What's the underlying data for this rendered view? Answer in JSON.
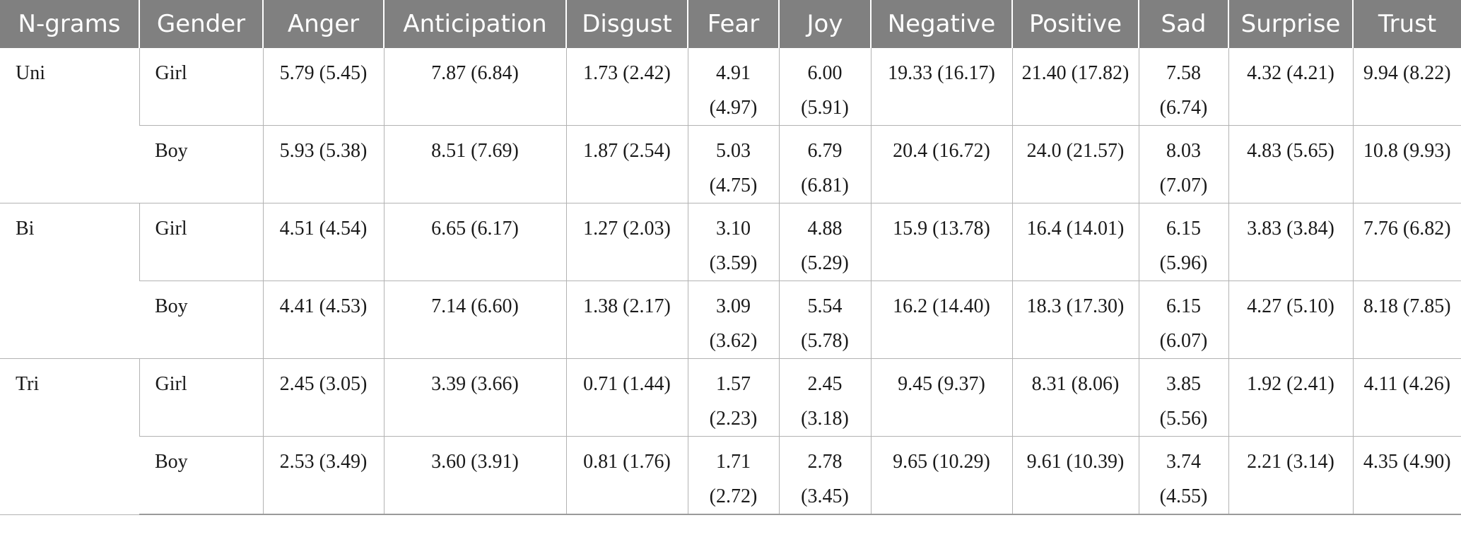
{
  "table": {
    "headers": [
      "N-grams",
      "Gender",
      "Anger",
      "Anticipation",
      "Disgust",
      "Fear",
      "Joy",
      "Negative",
      "Positive",
      "Sad",
      "Surprise",
      "Trust"
    ],
    "groups": [
      {
        "ngram": "Uni",
        "rows": [
          {
            "gender": "Girl",
            "values": [
              "5.79 (5.45)",
              "7.87 (6.84)",
              "1.73 (2.42)",
              "4.91 (4.97)",
              "6.00 (5.91)",
              "19.33 (16.17)",
              "21.40 (17.82)",
              "7.58 (6.74)",
              "4.32 (4.21)",
              "9.94 (8.22)"
            ]
          },
          {
            "gender": "Boy",
            "values": [
              "5.93 (5.38)",
              "8.51 (7.69)",
              "1.87 (2.54)",
              "5.03 (4.75)",
              "6.79 (6.81)",
              "20.4 (16.72)",
              "24.0 (21.57)",
              "8.03 (7.07)",
              "4.83 (5.65)",
              "10.8 (9.93)"
            ]
          }
        ]
      },
      {
        "ngram": "Bi",
        "rows": [
          {
            "gender": "Girl",
            "values": [
              "4.51 (4.54)",
              "6.65 (6.17)",
              "1.27 (2.03)",
              "3.10 (3.59)",
              "4.88 (5.29)",
              "15.9 (13.78)",
              "16.4 (14.01)",
              "6.15 (5.96)",
              "3.83 (3.84)",
              "7.76 (6.82)"
            ]
          },
          {
            "gender": "Boy",
            "values": [
              "4.41 (4.53)",
              "7.14 (6.60)",
              "1.38 (2.17)",
              "3.09 (3.62)",
              "5.54 (5.78)",
              "16.2 (14.40)",
              "18.3 (17.30)",
              "6.15 (6.07)",
              "4.27 (5.10)",
              "8.18 (7.85)"
            ]
          }
        ]
      },
      {
        "ngram": "Tri",
        "rows": [
          {
            "gender": "Girl",
            "values": [
              "2.45 (3.05)",
              "3.39 (3.66)",
              "0.71 (1.44)",
              "1.57 (2.23)",
              "2.45 (3.18)",
              "9.45 (9.37)",
              "8.31 (8.06)",
              "3.85 (5.56)",
              "1.92 (2.41)",
              "4.11 (4.26)"
            ]
          },
          {
            "gender": "Boy",
            "values": [
              "2.53 (3.49)",
              "3.60 (3.91)",
              "0.81 (1.76)",
              "1.71 (2.72)",
              "2.78 (3.45)",
              "9.65 (10.29)",
              "9.61 (10.39)",
              "3.74 (4.55)",
              "2.21 (3.14)",
              "4.35 (4.90)"
            ]
          }
        ]
      }
    ]
  },
  "colors": {
    "header_bg": "#808080",
    "header_text": "#ffffff",
    "grid": "#b3b3b3"
  }
}
